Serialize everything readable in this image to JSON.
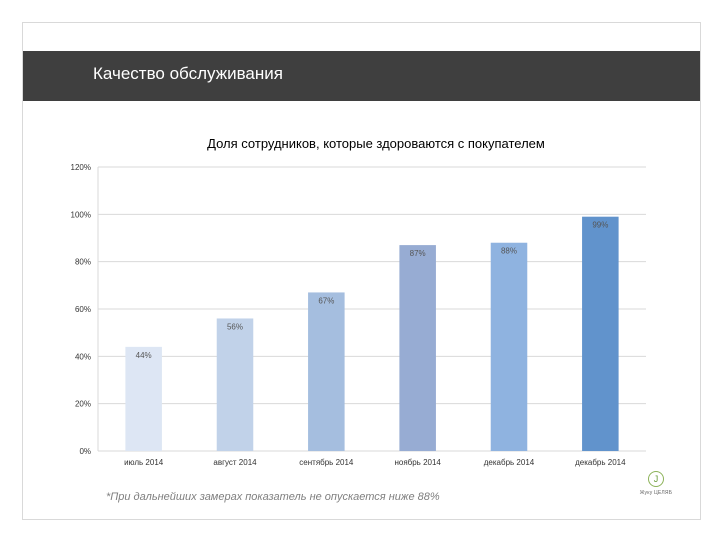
{
  "header": {
    "title": "Качество обслуживания"
  },
  "chart_data": {
    "type": "bar",
    "title": "Доля сотрудников, которые здороваются с покупателем",
    "xlabel": "",
    "ylabel": "",
    "categories": [
      "июль 2014",
      "август 2014",
      "сентябрь 2014",
      "ноябрь 2014",
      "декабрь 2014",
      "декабрь 2014"
    ],
    "values": [
      44,
      56,
      67,
      87,
      88,
      99
    ],
    "value_labels": [
      "44%",
      "56%",
      "67%",
      "87%",
      "88%",
      "99%"
    ],
    "ylim": [
      0,
      120
    ],
    "yticks": [
      0,
      20,
      40,
      60,
      80,
      100,
      120
    ],
    "ytick_labels": [
      "0%",
      "20%",
      "40%",
      "60%",
      "80%",
      "100%",
      "120%"
    ],
    "grid": true,
    "legend": "none",
    "colors": [
      "#dde6f4",
      "#c1d2e9",
      "#a5bedf",
      "#97acd3",
      "#8fb3e0",
      "#6193cc"
    ]
  },
  "footnote": "*При дальнейших замерах показатель не опускается ниже 88%",
  "logo": {
    "icon": "logo-icon",
    "mark": "J",
    "text": "Жуку ЦЕЛЯБ"
  }
}
